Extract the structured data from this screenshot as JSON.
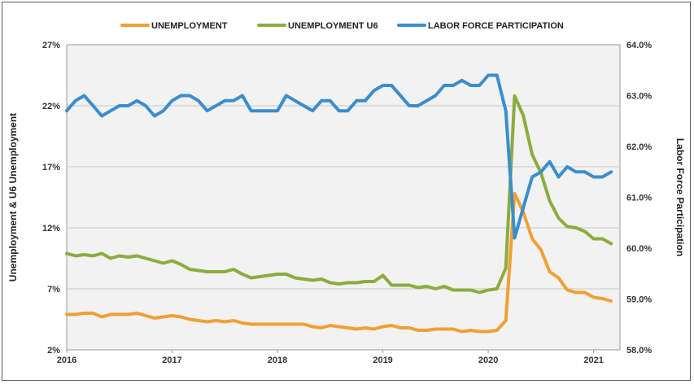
{
  "chart_data": {
    "type": "line",
    "title": "",
    "legend_position": "top",
    "grid": true,
    "x_label": "",
    "x_ticks": [
      "2016",
      "2017",
      "2018",
      "2019",
      "2020",
      "2021"
    ],
    "x_range": [
      2016.0,
      2021.25
    ],
    "y_left": {
      "label": "Unemployment & U6 Unemployment",
      "range": [
        2,
        27
      ],
      "ticks": [
        "2%",
        "7%",
        "12%",
        "17%",
        "22%",
        "27%"
      ]
    },
    "y_right": {
      "label": "Labor Force Participation",
      "range": [
        58.0,
        64.0
      ],
      "ticks": [
        "58.0%",
        "59.0%",
        "60.0%",
        "61.0%",
        "62.0%",
        "63.0%",
        "64.0%"
      ]
    },
    "series": [
      {
        "name": "UNEMPLOYMENT",
        "axis": "left",
        "color": "#f0a032",
        "x": [
          2016.0,
          2016.083,
          2016.167,
          2016.25,
          2016.333,
          2016.417,
          2016.5,
          2016.583,
          2016.667,
          2016.75,
          2016.833,
          2016.917,
          2017.0,
          2017.083,
          2017.167,
          2017.25,
          2017.333,
          2017.417,
          2017.5,
          2017.583,
          2017.667,
          2017.75,
          2017.833,
          2017.917,
          2018.0,
          2018.083,
          2018.167,
          2018.25,
          2018.333,
          2018.417,
          2018.5,
          2018.583,
          2018.667,
          2018.75,
          2018.833,
          2018.917,
          2019.0,
          2019.083,
          2019.167,
          2019.25,
          2019.333,
          2019.417,
          2019.5,
          2019.583,
          2019.667,
          2019.75,
          2019.833,
          2019.917,
          2020.0,
          2020.083,
          2020.167,
          2020.25,
          2020.333,
          2020.417,
          2020.5,
          2020.583,
          2020.667,
          2020.75,
          2020.833,
          2020.917,
          2021.0,
          2021.083,
          2021.167
        ],
        "values": [
          4.9,
          4.9,
          5.0,
          5.0,
          4.7,
          4.9,
          4.9,
          4.9,
          5.0,
          4.8,
          4.6,
          4.7,
          4.8,
          4.7,
          4.5,
          4.4,
          4.3,
          4.4,
          4.3,
          4.4,
          4.2,
          4.1,
          4.1,
          4.1,
          4.1,
          4.1,
          4.1,
          4.1,
          3.9,
          3.8,
          4.0,
          3.9,
          3.8,
          3.7,
          3.8,
          3.7,
          3.9,
          4.0,
          3.8,
          3.8,
          3.6,
          3.6,
          3.7,
          3.7,
          3.7,
          3.5,
          3.6,
          3.5,
          3.5,
          3.6,
          4.4,
          14.8,
          13.3,
          11.1,
          10.2,
          8.4,
          7.9,
          6.9,
          6.7,
          6.7,
          6.3,
          6.2,
          6.0
        ]
      },
      {
        "name": "UNEMPLOYMENT U6",
        "axis": "left",
        "color": "#8cac3c",
        "x": [
          2016.0,
          2016.083,
          2016.167,
          2016.25,
          2016.333,
          2016.417,
          2016.5,
          2016.583,
          2016.667,
          2016.75,
          2016.833,
          2016.917,
          2017.0,
          2017.083,
          2017.167,
          2017.25,
          2017.333,
          2017.417,
          2017.5,
          2017.583,
          2017.667,
          2017.75,
          2017.833,
          2017.917,
          2018.0,
          2018.083,
          2018.167,
          2018.25,
          2018.333,
          2018.417,
          2018.5,
          2018.583,
          2018.667,
          2018.75,
          2018.833,
          2018.917,
          2019.0,
          2019.083,
          2019.167,
          2019.25,
          2019.333,
          2019.417,
          2019.5,
          2019.583,
          2019.667,
          2019.75,
          2019.833,
          2019.917,
          2020.0,
          2020.083,
          2020.167,
          2020.25,
          2020.333,
          2020.417,
          2020.5,
          2020.583,
          2020.667,
          2020.75,
          2020.833,
          2020.917,
          2021.0,
          2021.083,
          2021.167
        ],
        "values": [
          9.9,
          9.7,
          9.8,
          9.7,
          9.9,
          9.5,
          9.7,
          9.6,
          9.7,
          9.5,
          9.3,
          9.1,
          9.3,
          9.0,
          8.6,
          8.5,
          8.4,
          8.4,
          8.4,
          8.6,
          8.2,
          7.9,
          8.0,
          8.1,
          8.2,
          8.2,
          7.9,
          7.8,
          7.7,
          7.8,
          7.5,
          7.4,
          7.5,
          7.5,
          7.6,
          7.6,
          8.1,
          7.3,
          7.3,
          7.3,
          7.1,
          7.2,
          7.0,
          7.2,
          6.9,
          6.9,
          6.9,
          6.7,
          6.9,
          7.0,
          8.7,
          22.8,
          21.2,
          18.0,
          16.5,
          14.2,
          12.8,
          12.1,
          12.0,
          11.7,
          11.1,
          11.1,
          10.7
        ]
      },
      {
        "name": "LABOR FORCE PARTICIPATION",
        "axis": "right",
        "color": "#3a8dd0",
        "x": [
          2016.0,
          2016.083,
          2016.167,
          2016.25,
          2016.333,
          2016.417,
          2016.5,
          2016.583,
          2016.667,
          2016.75,
          2016.833,
          2016.917,
          2017.0,
          2017.083,
          2017.167,
          2017.25,
          2017.333,
          2017.417,
          2017.5,
          2017.583,
          2017.667,
          2017.75,
          2017.833,
          2017.917,
          2018.0,
          2018.083,
          2018.167,
          2018.25,
          2018.333,
          2018.417,
          2018.5,
          2018.583,
          2018.667,
          2018.75,
          2018.833,
          2018.917,
          2019.0,
          2019.083,
          2019.167,
          2019.25,
          2019.333,
          2019.417,
          2019.5,
          2019.583,
          2019.667,
          2019.75,
          2019.833,
          2019.917,
          2020.0,
          2020.083,
          2020.167,
          2020.25,
          2020.333,
          2020.417,
          2020.5,
          2020.583,
          2020.667,
          2020.75,
          2020.833,
          2020.917,
          2021.0,
          2021.083,
          2021.167
        ],
        "values": [
          62.7,
          62.9,
          63.0,
          62.8,
          62.6,
          62.7,
          62.8,
          62.8,
          62.9,
          62.8,
          62.6,
          62.7,
          62.9,
          63.0,
          63.0,
          62.9,
          62.7,
          62.8,
          62.9,
          62.9,
          63.0,
          62.7,
          62.7,
          62.7,
          62.7,
          63.0,
          62.9,
          62.8,
          62.7,
          62.9,
          62.9,
          62.7,
          62.7,
          62.9,
          62.9,
          63.1,
          63.2,
          63.2,
          63.0,
          62.8,
          62.8,
          62.9,
          63.0,
          63.2,
          63.2,
          63.3,
          63.2,
          63.2,
          63.4,
          63.4,
          62.7,
          60.2,
          60.8,
          61.4,
          61.5,
          61.7,
          61.4,
          61.6,
          61.5,
          61.5,
          61.4,
          61.4,
          61.5
        ]
      }
    ]
  }
}
